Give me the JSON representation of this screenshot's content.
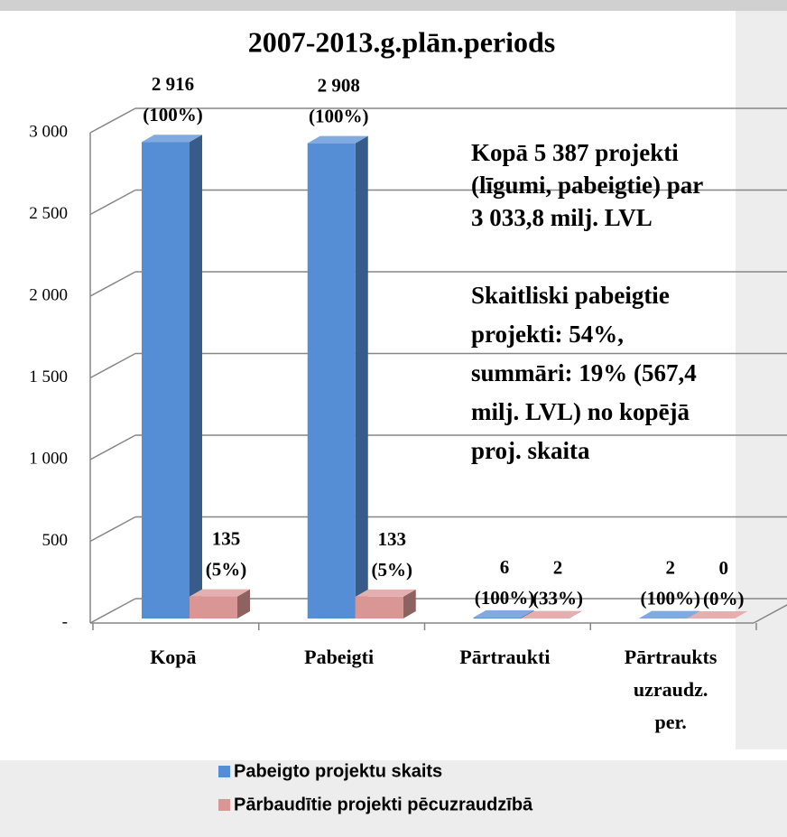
{
  "chart_data": {
    "type": "bar3d",
    "title": "2007-2013.g.plān.periods",
    "categories": [
      "Kopā",
      "Pabeigti",
      "Pārtraukti",
      "Pārtraukts\nuzraudz.\nper."
    ],
    "series": [
      {
        "name": "Pabeigto projektu skaits",
        "color": "#558ed5",
        "values": [
          2916,
          2908,
          6,
          2
        ],
        "value_labels": [
          "2 916\n(100%)",
          "2 908\n(100%)",
          "6\n(100%)",
          "2\n(100%)"
        ]
      },
      {
        "name": "Pārbaudītie projekti pēcuzraudzībā",
        "color": "#d99694",
        "values": [
          135,
          133,
          2,
          0
        ],
        "value_labels": [
          "135\n(5%)",
          "133\n(5%)",
          "2\n(33%)",
          "0\n(0%)"
        ]
      }
    ],
    "ylim": [
      0,
      3000
    ],
    "yticks": [
      {
        "value": 0,
        "label": "-"
      },
      500,
      {
        "value": 1000,
        "label": "1 000"
      },
      {
        "value": 1500,
        "label": "1 500"
      },
      {
        "value": 2000,
        "label": "2 000"
      },
      {
        "value": 2500,
        "label": "2 500"
      },
      {
        "value": 3000,
        "label": "3 000"
      }
    ],
    "grid": true,
    "annotations": [
      [
        "Kopā 5 387 projekti",
        "(līgumi, pabeigtie) par",
        "3 033,8 milj. LVL"
      ],
      [
        "Skaitliski pabeigtie",
        "projekti: 54%,",
        "summāri: 19% (567,4",
        "milj. LVL) no kopējā",
        "proj. skaita"
      ]
    ]
  }
}
